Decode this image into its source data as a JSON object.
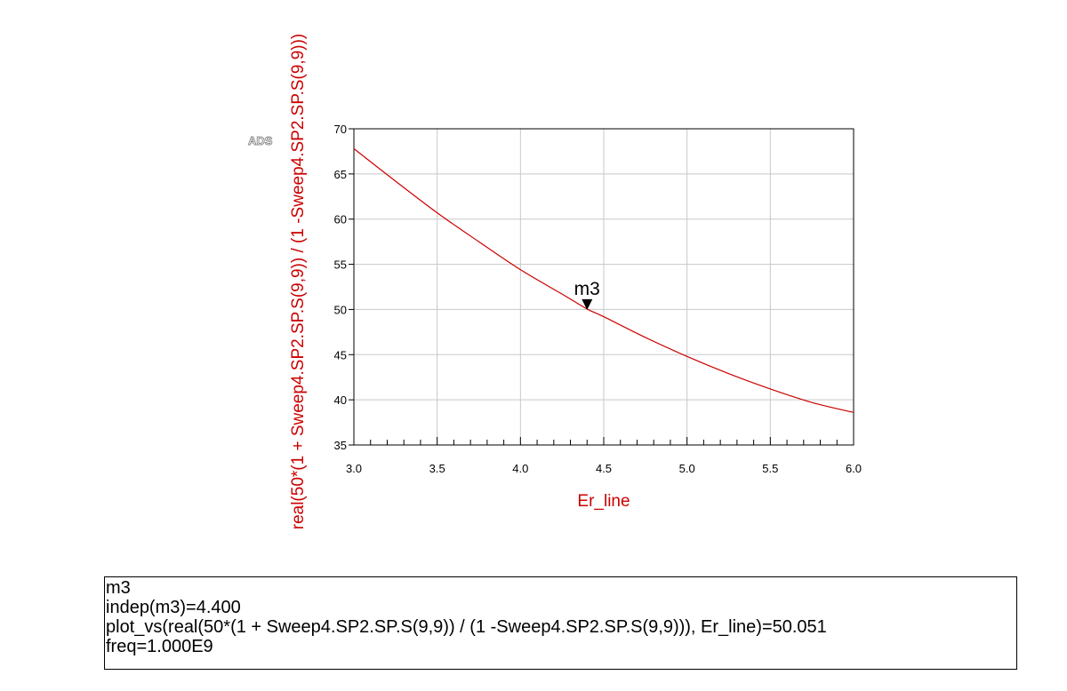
{
  "chart_data": {
    "type": "line",
    "logo": "ADS",
    "xlabel": "Er_line",
    "ylabel": "real(50*(1 + Sweep4.SP2.SP.S(9,9)) / (1 -Sweep4.SP2.SP.S(9,9)))",
    "xlim": [
      3.0,
      6.0
    ],
    "ylim": [
      35,
      70
    ],
    "x_ticks": [
      "3.0",
      "3.5",
      "4.0",
      "4.5",
      "5.0",
      "5.5",
      "6.0"
    ],
    "y_ticks": [
      "35",
      "40",
      "45",
      "50",
      "55",
      "60",
      "65",
      "70"
    ],
    "grid": true,
    "series": [
      {
        "color": "#cc0000",
        "x": [
          3.0,
          3.25,
          3.5,
          3.75,
          4.0,
          4.25,
          4.4,
          4.5,
          4.75,
          5.0,
          5.25,
          5.5,
          5.75,
          6.0
        ],
        "y": [
          67.8,
          64.2,
          60.7,
          57.5,
          54.4,
          51.7,
          50.05,
          49.2,
          46.9,
          44.8,
          42.9,
          41.2,
          39.7,
          38.6
        ]
      }
    ],
    "markers": [
      {
        "label": "m3",
        "x": 4.4,
        "y": 50.051
      }
    ]
  },
  "readout": {
    "lines": [
      "m3",
      "indep(m3)=4.400",
      "plot_vs(real(50*(1 + Sweep4.SP2.SP.S(9,9)) / (1 -Sweep4.SP2.SP.S(9,9))), Er_line)=50.051",
      "freq=1.000E9"
    ]
  }
}
